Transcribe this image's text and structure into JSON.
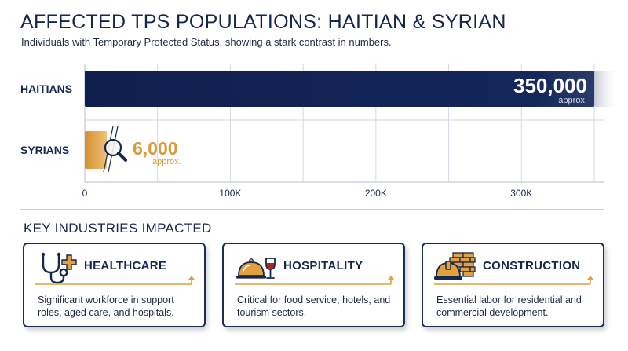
{
  "header": {
    "title": "AFFECTED TPS POPULATIONS: HAITIAN & SYRIAN",
    "subtitle": "Individuals with Temporary Protected Status, showing a stark contrast in numbers."
  },
  "chart_data": {
    "type": "bar",
    "orientation": "horizontal",
    "categories": [
      "HAITIANS",
      "SYRIANS"
    ],
    "values": [
      350000,
      6000
    ],
    "data_labels": [
      "350,000",
      "6,000"
    ],
    "data_label_notes": [
      "approx.",
      "approx."
    ],
    "xlim": [
      0,
      360000
    ],
    "x_ticks": [
      0,
      100000,
      200000,
      300000
    ],
    "x_tick_labels": [
      "0",
      "100K",
      "200K",
      "300K"
    ],
    "grid": true,
    "colors": {
      "haitians": "#14265a",
      "syrians": "#dea148",
      "syrians_label": "#d99a3b"
    }
  },
  "industries": {
    "title": "KEY INDUSTRIES IMPACTED",
    "cards": [
      {
        "icon": "stethoscope-icon",
        "title": "HEALTHCARE",
        "description": "Significant workforce in support roles, aged care, and hospitals."
      },
      {
        "icon": "cloche-wine-icon",
        "title": "HOSPITALITY",
        "description": "Critical for food service, hotels, and tourism sectors."
      },
      {
        "icon": "brick-hardhat-icon",
        "title": "CONSTRUCTION",
        "description": "Essential labor for residential and commercial development."
      }
    ]
  },
  "colors": {
    "navy": "#15264f",
    "accent": "#e0a13e",
    "border": "#1c2d57"
  }
}
